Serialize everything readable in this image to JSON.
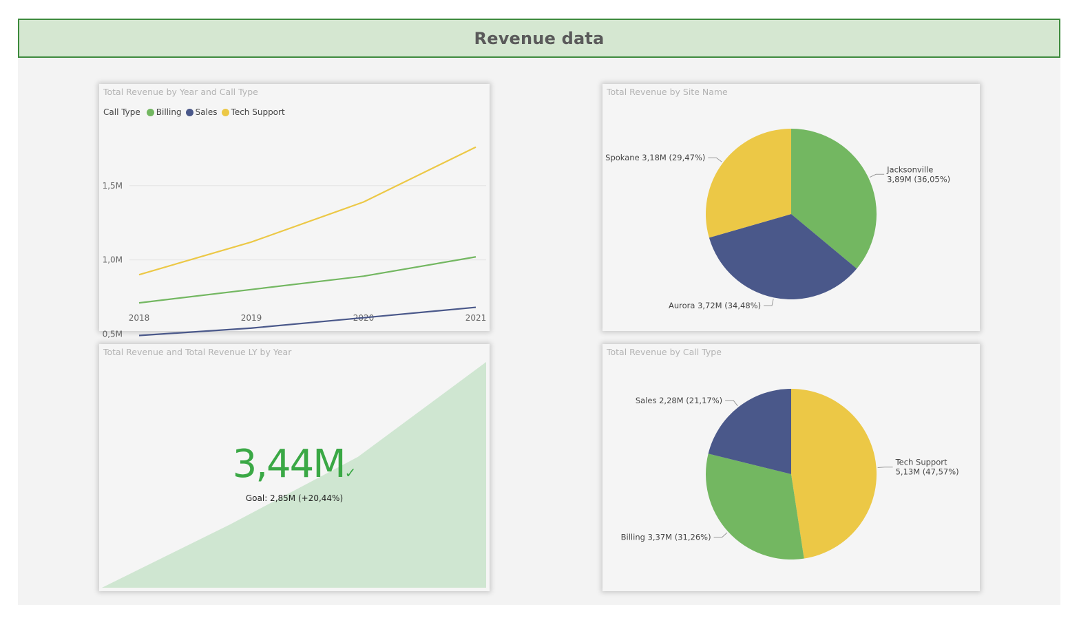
{
  "page": {
    "title": "Revenue data"
  },
  "colors": {
    "billing": "#73b761",
    "sales": "#4a588a",
    "tech_support": "#ecc846",
    "kpi_green": "#3aa845",
    "kpi_area": "#cfe6d1",
    "header_bg": "#d5e7d1",
    "header_border": "#3d8a3d"
  },
  "line_chart": {
    "title": "Total Revenue by Year and Call Type",
    "legend_title": "Call Type",
    "y_tick_labels": [
      "0,5M",
      "1,0M",
      "1,5M"
    ]
  },
  "pie_site": {
    "title": "Total Revenue by Site Name"
  },
  "kpi": {
    "title": "Total Revenue and Total Revenue LY by Year",
    "value": "3,44M",
    "goal": "Goal: 2,85M (+20,44%)",
    "check_icon": "✓"
  },
  "pie_call": {
    "title": "Total Revenue by Call Type"
  },
  "chart_data": [
    {
      "type": "line",
      "title": "Total Revenue by Year and Call Type",
      "categories": [
        "2018",
        "2019",
        "2020",
        "2021"
      ],
      "series": [
        {
          "name": "Billing",
          "color": "#73b761",
          "values": [
            0.71,
            0.8,
            0.89,
            1.02
          ]
        },
        {
          "name": "Sales",
          "color": "#4a588a",
          "values": [
            0.49,
            0.54,
            0.61,
            0.68
          ]
        },
        {
          "name": "Tech Support",
          "color": "#ecc846",
          "values": [
            0.9,
            1.12,
            1.39,
            1.76
          ]
        }
      ],
      "y_ticks": [
        0.5,
        1.0,
        1.5
      ],
      "ylim": [
        0.46,
        1.87
      ],
      "grid": true,
      "legend": "top-left"
    },
    {
      "type": "pie",
      "title": "Total Revenue by Site Name",
      "slices": [
        {
          "name": "Jacksonville",
          "value": 3.89,
          "pct": 36.05,
          "value_label": "3,89M",
          "pct_label": "(36,05%)",
          "color": "#73b761"
        },
        {
          "name": "Aurora",
          "value": 3.72,
          "pct": 34.48,
          "value_label": "3,72M",
          "pct_label": "(34,48%)",
          "color": "#4a588a"
        },
        {
          "name": "Spokane",
          "value": 3.18,
          "pct": 29.47,
          "value_label": "3,18M",
          "pct_label": "(29,47%)",
          "color": "#ecc846"
        }
      ]
    },
    {
      "type": "area",
      "title": "Total Revenue and Total Revenue LY by Year",
      "values": [
        0.0,
        0.28,
        0.58,
        1.0
      ]
    },
    {
      "type": "pie",
      "title": "Total Revenue by Call Type",
      "slices": [
        {
          "name": "Tech Support",
          "value": 5.13,
          "pct": 47.57,
          "value_label": "5,13M",
          "pct_label": "(47,57%)",
          "color": "#ecc846"
        },
        {
          "name": "Billing",
          "value": 3.37,
          "pct": 31.26,
          "value_label": "3,37M",
          "pct_label": "(31,26%)",
          "color": "#73b761"
        },
        {
          "name": "Sales",
          "value": 2.28,
          "pct": 21.17,
          "value_label": "2,28M",
          "pct_label": "(21,17%)",
          "color": "#4a588a"
        }
      ]
    }
  ]
}
